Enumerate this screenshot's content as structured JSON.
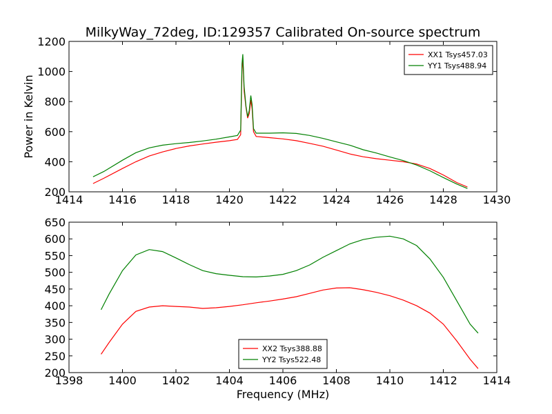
{
  "figure": {
    "title": "MilkyWay_72deg, ID:129357 Calibrated On-source spectrum"
  },
  "chart_data": [
    {
      "type": "line",
      "title": "MilkyWay_72deg, ID:129357 Calibrated On-source spectrum",
      "xlabel": "",
      "ylabel": "Power in Kelvin",
      "xlim": [
        1414,
        1430
      ],
      "ylim": [
        200,
        1200
      ],
      "xticks": [
        1414,
        1416,
        1418,
        1420,
        1422,
        1424,
        1426,
        1428,
        1430
      ],
      "yticks": [
        200,
        400,
        600,
        800,
        1000,
        1200
      ],
      "grid": false,
      "legend": "top-right",
      "series": [
        {
          "name": "XX1 Tsys457.03",
          "color": "#ff0000",
          "points": [
            [
              1414.9,
              255
            ],
            [
              1415.3,
              290
            ],
            [
              1416.0,
              355
            ],
            [
              1416.5,
              400
            ],
            [
              1417.0,
              438
            ],
            [
              1417.5,
              465
            ],
            [
              1418.0,
              488
            ],
            [
              1418.5,
              505
            ],
            [
              1419.0,
              518
            ],
            [
              1419.5,
              530
            ],
            [
              1420.0,
              540
            ],
            [
              1420.3,
              548
            ],
            [
              1420.42,
              580
            ],
            [
              1420.47,
              1000
            ],
            [
              1420.5,
              1100
            ],
            [
              1420.55,
              870
            ],
            [
              1420.62,
              760
            ],
            [
              1420.68,
              690
            ],
            [
              1420.74,
              720
            ],
            [
              1420.8,
              810
            ],
            [
              1420.85,
              750
            ],
            [
              1420.9,
              600
            ],
            [
              1421.0,
              568
            ],
            [
              1421.5,
              560
            ],
            [
              1422.0,
              552
            ],
            [
              1422.5,
              540
            ],
            [
              1423.0,
              522
            ],
            [
              1423.5,
              503
            ],
            [
              1424.0,
              478
            ],
            [
              1424.5,
              452
            ],
            [
              1425.0,
              433
            ],
            [
              1425.5,
              420
            ],
            [
              1426.0,
              410
            ],
            [
              1426.5,
              400
            ],
            [
              1427.0,
              385
            ],
            [
              1427.5,
              355
            ],
            [
              1428.0,
              312
            ],
            [
              1428.5,
              262
            ],
            [
              1428.9,
              232
            ]
          ]
        },
        {
          "name": "YY1 Tsys488.94",
          "color": "#008000",
          "points": [
            [
              1414.9,
              300
            ],
            [
              1415.3,
              335
            ],
            [
              1416.0,
              410
            ],
            [
              1416.5,
              460
            ],
            [
              1417.0,
              492
            ],
            [
              1417.5,
              510
            ],
            [
              1418.0,
              520
            ],
            [
              1418.5,
              528
            ],
            [
              1419.0,
              538
            ],
            [
              1419.5,
              550
            ],
            [
              1420.0,
              565
            ],
            [
              1420.3,
              575
            ],
            [
              1420.42,
              610
            ],
            [
              1420.47,
              1050
            ],
            [
              1420.5,
              1115
            ],
            [
              1420.55,
              900
            ],
            [
              1420.62,
              770
            ],
            [
              1420.68,
              700
            ],
            [
              1420.74,
              740
            ],
            [
              1420.8,
              840
            ],
            [
              1420.85,
              780
            ],
            [
              1420.9,
              620
            ],
            [
              1421.0,
              590
            ],
            [
              1421.5,
              590
            ],
            [
              1422.0,
              592
            ],
            [
              1422.5,
              588
            ],
            [
              1423.0,
              575
            ],
            [
              1423.5,
              555
            ],
            [
              1424.0,
              532
            ],
            [
              1424.5,
              510
            ],
            [
              1425.0,
              480
            ],
            [
              1425.5,
              458
            ],
            [
              1426.0,
              432
            ],
            [
              1426.5,
              408
            ],
            [
              1427.0,
              378
            ],
            [
              1427.5,
              340
            ],
            [
              1428.0,
              295
            ],
            [
              1428.5,
              252
            ],
            [
              1428.9,
              222
            ]
          ]
        }
      ]
    },
    {
      "type": "line",
      "title": "",
      "xlabel": "Frequency (MHz)",
      "ylabel": "",
      "xlim": [
        1398,
        1414
      ],
      "ylim": [
        200,
        650
      ],
      "xticks": [
        1398,
        1400,
        1402,
        1404,
        1406,
        1408,
        1410,
        1412,
        1414
      ],
      "yticks": [
        200,
        250,
        300,
        350,
        400,
        450,
        500,
        550,
        600,
        650
      ],
      "grid": false,
      "legend": "bottom-center",
      "series": [
        {
          "name": "XX2 Tsys388.88",
          "color": "#ff0000",
          "points": [
            [
              1399.2,
              255
            ],
            [
              1399.5,
              290
            ],
            [
              1400.0,
              345
            ],
            [
              1400.5,
              383
            ],
            [
              1401.0,
              396
            ],
            [
              1401.5,
              400
            ],
            [
              1402.0,
              398
            ],
            [
              1402.5,
              396
            ],
            [
              1403.0,
              392
            ],
            [
              1403.5,
              394
            ],
            [
              1404.0,
              398
            ],
            [
              1404.5,
              403
            ],
            [
              1405.0,
              409
            ],
            [
              1405.5,
              414
            ],
            [
              1406.0,
              420
            ],
            [
              1406.5,
              427
            ],
            [
              1407.0,
              437
            ],
            [
              1407.5,
              447
            ],
            [
              1408.0,
              453
            ],
            [
              1408.5,
              454
            ],
            [
              1409.0,
              448
            ],
            [
              1409.5,
              440
            ],
            [
              1410.0,
              430
            ],
            [
              1410.5,
              417
            ],
            [
              1411.0,
              400
            ],
            [
              1411.5,
              378
            ],
            [
              1412.0,
              345
            ],
            [
              1412.5,
              295
            ],
            [
              1413.0,
              240
            ],
            [
              1413.3,
              212
            ]
          ]
        },
        {
          "name": "YY2 Tsys522.48",
          "color": "#008000",
          "points": [
            [
              1399.2,
              388
            ],
            [
              1399.5,
              435
            ],
            [
              1400.0,
              505
            ],
            [
              1400.5,
              552
            ],
            [
              1401.0,
              568
            ],
            [
              1401.5,
              562
            ],
            [
              1402.0,
              543
            ],
            [
              1402.5,
              523
            ],
            [
              1403.0,
              505
            ],
            [
              1403.5,
              496
            ],
            [
              1404.0,
              491
            ],
            [
              1404.5,
              487
            ],
            [
              1405.0,
              486
            ],
            [
              1405.5,
              489
            ],
            [
              1406.0,
              494
            ],
            [
              1406.5,
              505
            ],
            [
              1407.0,
              522
            ],
            [
              1407.5,
              545
            ],
            [
              1408.0,
              565
            ],
            [
              1408.5,
              585
            ],
            [
              1409.0,
              598
            ],
            [
              1409.5,
              605
            ],
            [
              1410.0,
              608
            ],
            [
              1410.5,
              600
            ],
            [
              1411.0,
              580
            ],
            [
              1411.5,
              540
            ],
            [
              1412.0,
              485
            ],
            [
              1412.5,
              415
            ],
            [
              1413.0,
              345
            ],
            [
              1413.3,
              318
            ]
          ]
        }
      ]
    }
  ]
}
